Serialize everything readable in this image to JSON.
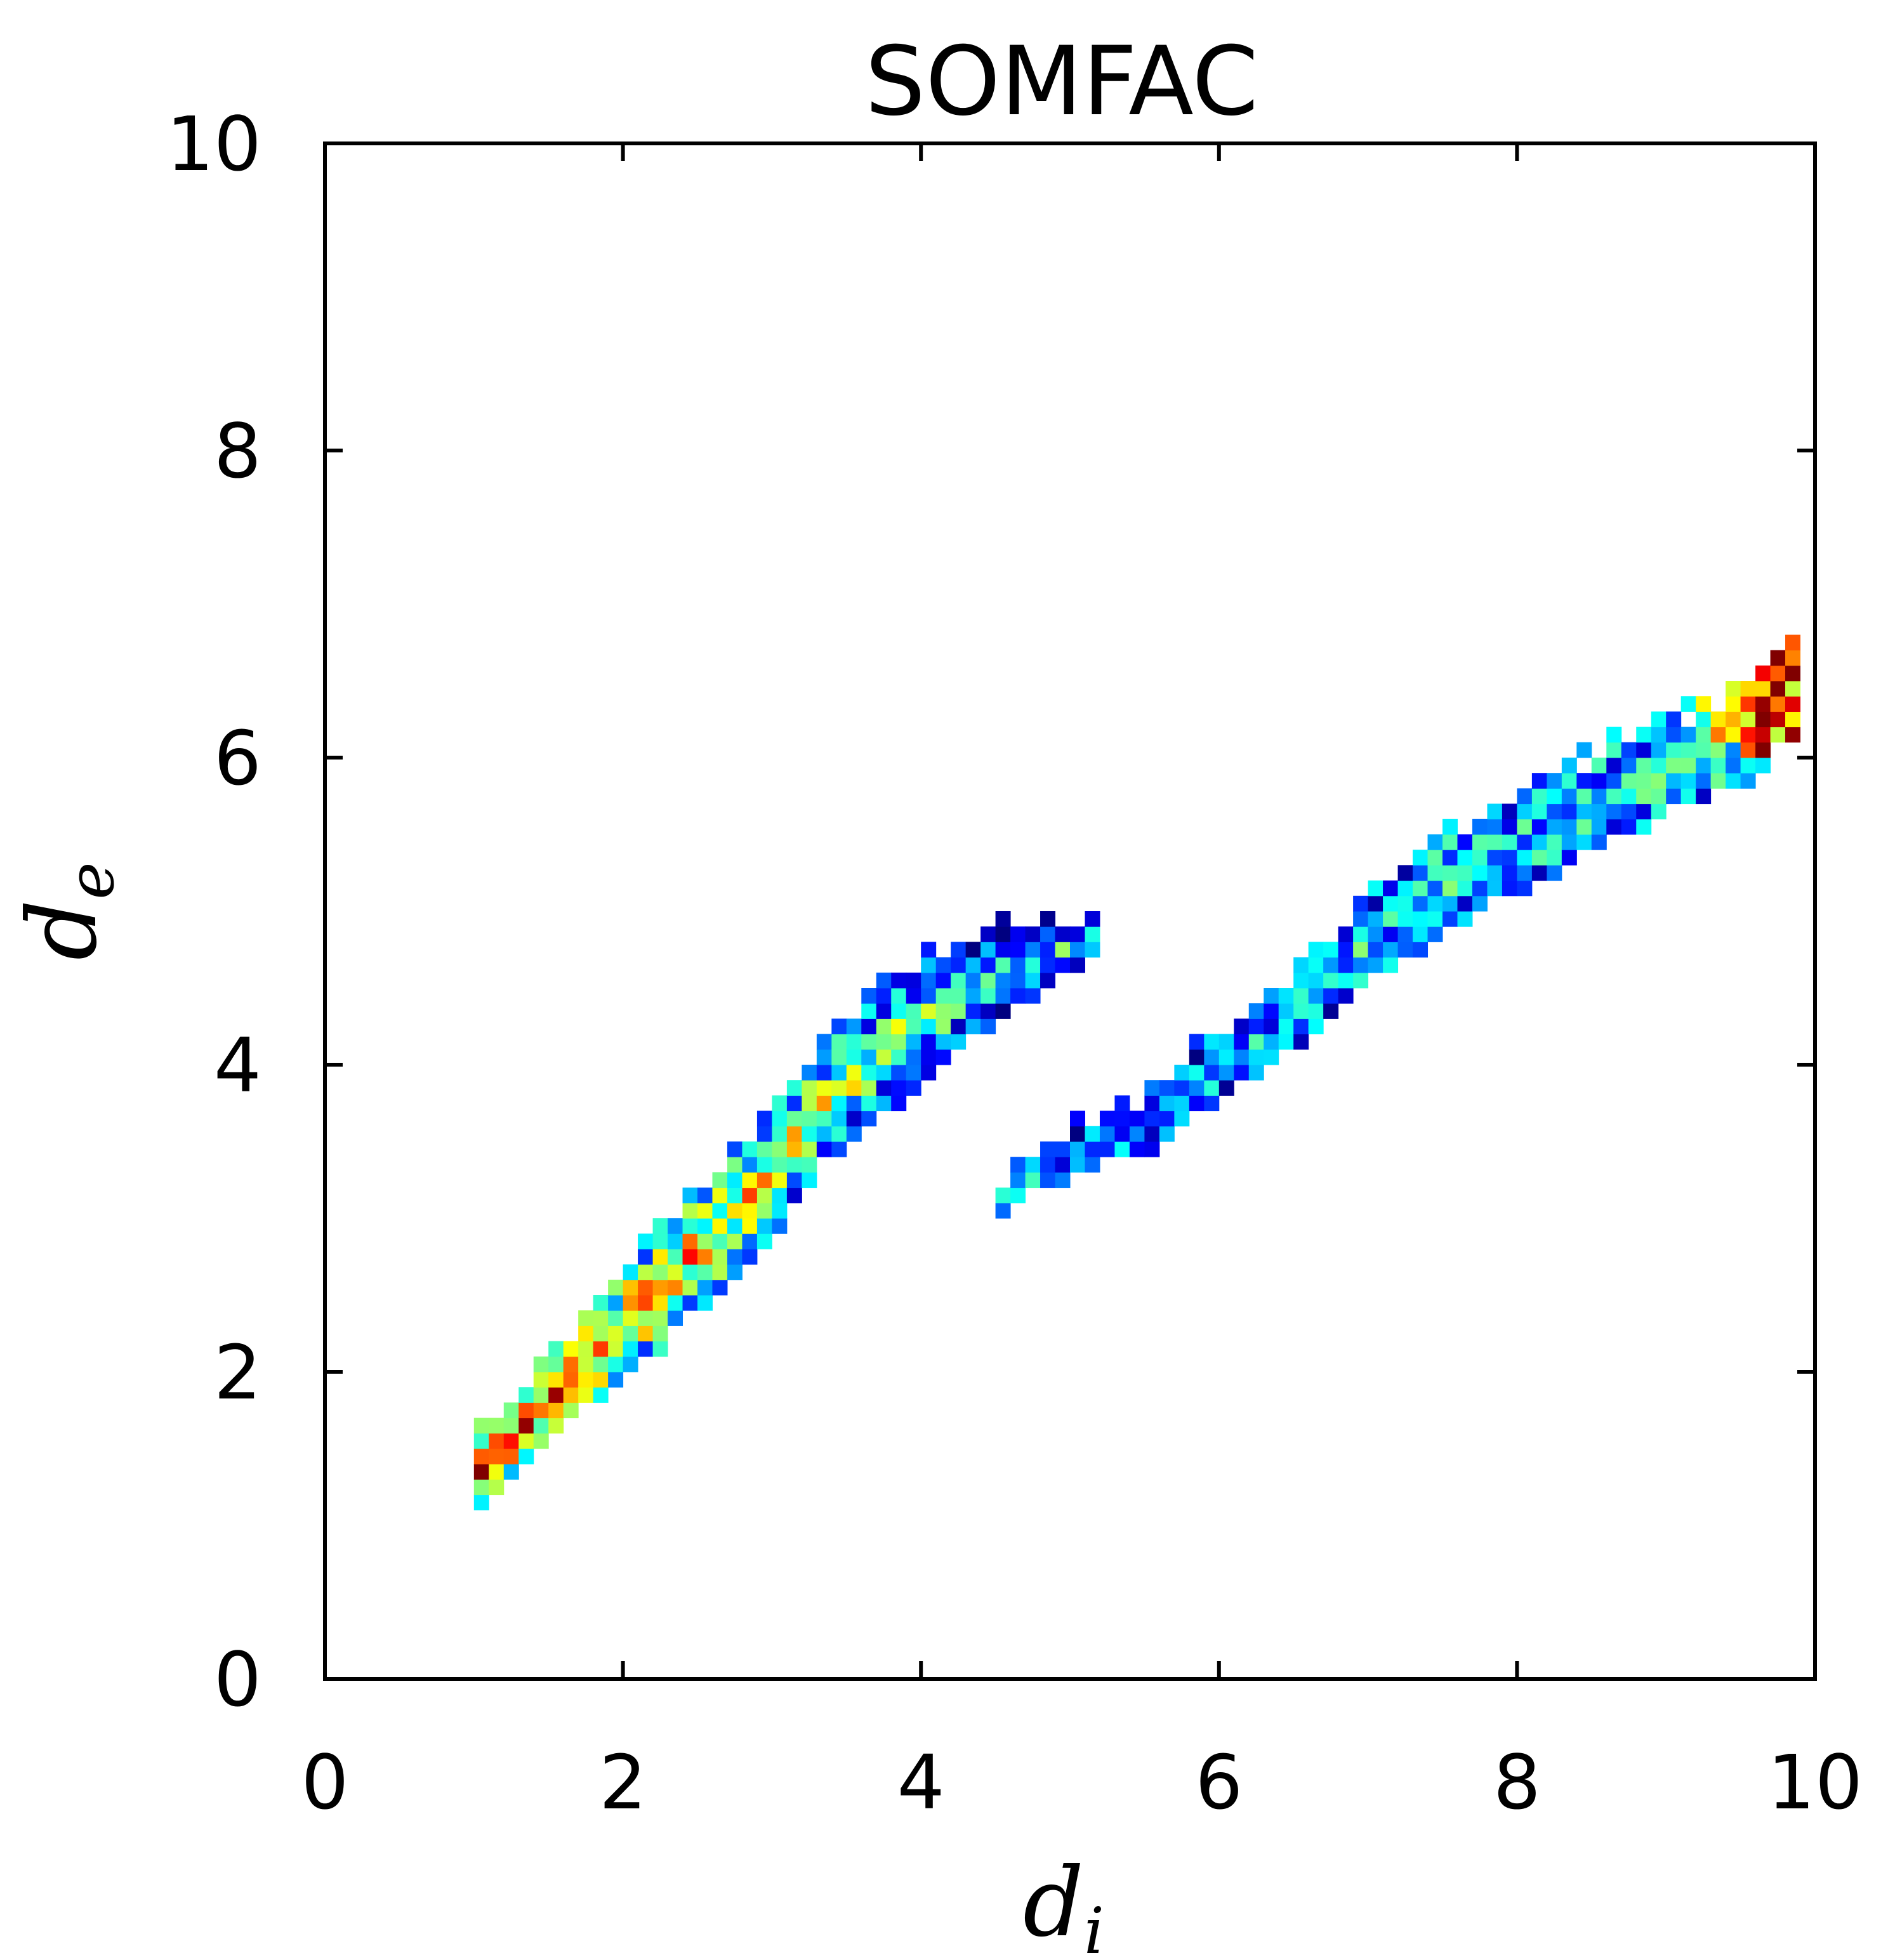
{
  "chart_data": {
    "type": "heatmap",
    "title": "SOMFAC",
    "xlabel": "d_i",
    "ylabel": "d_e",
    "xlabel_main": "d",
    "xlabel_sub": "i",
    "ylabel_main": "d",
    "ylabel_sub": "e",
    "xlim": [
      0,
      10
    ],
    "ylim": [
      0,
      10
    ],
    "xticks": [
      "0",
      "2",
      "4",
      "6",
      "8",
      "10"
    ],
    "yticks": [
      "0",
      "2",
      "4",
      "6",
      "8",
      "10"
    ],
    "colormap": "jet",
    "grid": false,
    "bin_size": 0.1,
    "regions": [
      {
        "name": "",
        "x_range": [
          1.0,
          5.2
        ],
        "density_profile": "peaks near (1.5, 1.7), decays along ridge to (5.1, 4.9)",
        "ridge": [
          [
            1.0,
            1.3
          ],
          [
            1.6,
            1.9
          ],
          [
            2.2,
            2.5
          ],
          [
            2.8,
            3.1
          ],
          [
            3.4,
            3.8
          ],
          [
            4.0,
            4.3
          ],
          [
            4.6,
            4.6
          ],
          [
            5.1,
            4.8
          ]
        ],
        "spread": [
          0.25,
          0.3,
          0.4,
          0.45,
          0.45,
          0.42,
          0.3,
          0.15
        ]
      },
      {
        "name": "",
        "x_range": [
          4.5,
          9.9
        ],
        "density_profile": "low along the band, high near (9.8, 6.6)",
        "ridge": [
          [
            4.5,
            3.1
          ],
          [
            5.0,
            3.4
          ],
          [
            5.5,
            3.6
          ],
          [
            6.0,
            4.0
          ],
          [
            6.5,
            4.3
          ],
          [
            7.0,
            4.8
          ],
          [
            7.5,
            5.2
          ],
          [
            8.0,
            5.4
          ],
          [
            8.5,
            5.7
          ],
          [
            9.0,
            5.9
          ],
          [
            9.5,
            6.1
          ],
          [
            9.8,
            6.4
          ]
        ],
        "spread": [
          0.08,
          0.15,
          0.2,
          0.22,
          0.25,
          0.3,
          0.35,
          0.32,
          0.3,
          0.3,
          0.3,
          0.35
        ]
      }
    ]
  }
}
